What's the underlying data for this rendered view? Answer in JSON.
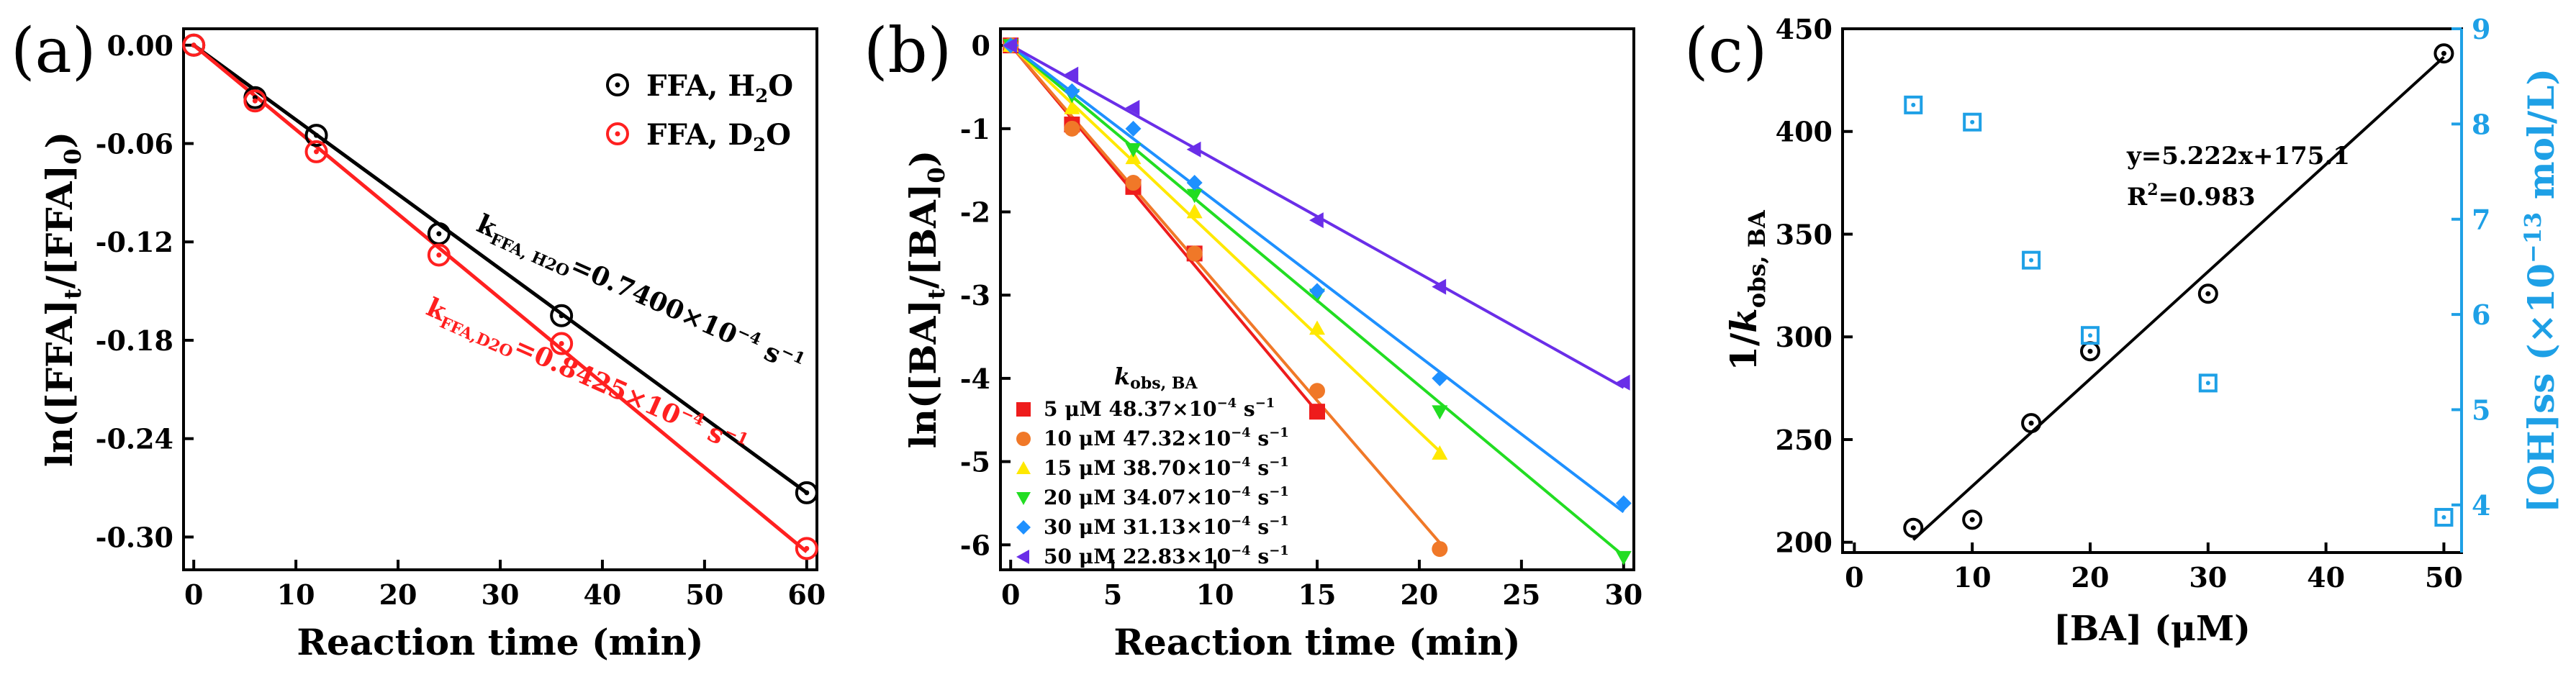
{
  "chart_data": [
    {
      "panel_label": "(a)",
      "type": "scatter",
      "xlabel": "Reaction time (min)",
      "ylabel": "ln([FFA]t/[FFA]0)",
      "ylabel_parts": [
        "ln([FFA]",
        "t",
        "/[FFA]",
        "0",
        ")"
      ],
      "xlim": [
        -1,
        61
      ],
      "ylim": [
        -0.32,
        0.01
      ],
      "x_ticks": [
        0,
        10,
        20,
        30,
        40,
        50,
        60
      ],
      "x_tick_labels": [
        "0",
        "10",
        "20",
        "30",
        "40",
        "50",
        "60"
      ],
      "y_ticks": [
        0,
        -0.06,
        -0.12,
        -0.18,
        -0.24,
        -0.3
      ],
      "y_tick_labels": [
        "0.00",
        "-0.06",
        "-0.12",
        "-0.18",
        "-0.24",
        "-0.30"
      ],
      "series": [
        {
          "name": "FFA, H2O",
          "legend_parts": [
            "FFA, H",
            "2",
            "O"
          ],
          "color": "#000000",
          "marker": "circle-dot",
          "x": [
            0,
            6,
            12,
            24,
            36,
            60
          ],
          "values": [
            0.0,
            -0.032,
            -0.055,
            -0.115,
            -0.165,
            -0.273
          ],
          "fit": {
            "slope": -0.00455,
            "intercept": 0.0
          },
          "annotation": "kFFA, H2O=0.7400×10−4 s−1",
          "annotation_parts": [
            "k",
            "FFA, H2O",
            "=0.7400×10",
            "−4",
            " s",
            "−1"
          ]
        },
        {
          "name": "FFA, D2O",
          "legend_parts": [
            "FFA, D",
            "2",
            "O"
          ],
          "color": "#ff2020",
          "marker": "circle-dot",
          "x": [
            0,
            6,
            12,
            24,
            36,
            60
          ],
          "values": [
            0.0,
            -0.034,
            -0.065,
            -0.128,
            -0.182,
            -0.307
          ],
          "fit": {
            "slope": -0.00515,
            "intercept": 0.0
          },
          "annotation": "kFFA,D2O=0.8425×10−4 s−1",
          "annotation_parts": [
            "k",
            "FFA,D2O",
            "=0.8425×10",
            "−4",
            " s",
            "−1"
          ]
        }
      ]
    },
    {
      "panel_label": "(b)",
      "type": "scatter",
      "xlabel": "Reaction time (min)",
      "ylabel": "ln([BA]t/[BA]0)",
      "ylabel_parts": [
        "ln([BA]",
        "t",
        "/[BA]",
        "0",
        ")"
      ],
      "xlim": [
        -0.5,
        30.5
      ],
      "ylim": [
        -6.3,
        0.2
      ],
      "x_ticks": [
        0,
        5,
        10,
        15,
        20,
        25,
        30
      ],
      "x_tick_labels": [
        "0",
        "5",
        "10",
        "15",
        "20",
        "25",
        "30"
      ],
      "y_ticks": [
        0,
        -1,
        -2,
        -3,
        -4,
        -5,
        -6
      ],
      "y_tick_labels": [
        "0",
        "-1",
        "-2",
        "-3",
        "-4",
        "-5",
        "-6"
      ],
      "legend_title": "kobs, BA",
      "legend_title_parts": [
        "k",
        "obs, BA"
      ],
      "series": [
        {
          "name": "5 μM 48.37×10−4 s−1",
          "legend_parts": [
            "5 μM 48.37×10",
            "−4",
            " s",
            "−1"
          ],
          "color": "#ee1c1c",
          "marker": "square",
          "x": [
            0,
            3,
            6,
            9,
            15
          ],
          "values": [
            0,
            -0.95,
            -1.7,
            -2.5,
            -4.4
          ],
          "fit": {
            "slope": -0.2935,
            "intercept": 0
          }
        },
        {
          "name": "10 μM 47.32×10−4 s−1",
          "legend_parts": [
            "10 μM 47.32×10",
            "−4",
            " s",
            "−1"
          ],
          "color": "#f07828",
          "marker": "circle",
          "x": [
            0,
            3,
            6,
            9,
            15,
            21
          ],
          "values": [
            0,
            -1.0,
            -1.65,
            -2.5,
            -4.15,
            -6.05
          ],
          "fit": {
            "slope": -0.2845,
            "intercept": 0
          }
        },
        {
          "name": "15 μM 38.70×10−4 s−1",
          "legend_parts": [
            "15 μM 38.70×10",
            "−4",
            " s",
            "−1"
          ],
          "color": "#ffe800",
          "marker": "triangle-up",
          "x": [
            0,
            3,
            6,
            9,
            15,
            21
          ],
          "values": [
            0,
            -0.75,
            -1.35,
            -2.0,
            -3.4,
            -4.9
          ],
          "fit": {
            "slope": -0.2322,
            "intercept": 0
          }
        },
        {
          "name": "20 μM 34.07×10−4 s−1",
          "legend_parts": [
            "20 μM 34.07×10",
            "−4",
            " s",
            "−1"
          ],
          "color": "#22dd22",
          "marker": "triangle-down",
          "x": [
            0,
            3,
            6,
            9,
            15,
            21,
            30
          ],
          "values": [
            0,
            -0.6,
            -1.25,
            -1.8,
            -3.0,
            -4.4,
            -6.15
          ],
          "fit": {
            "slope": -0.2044,
            "intercept": 0
          }
        },
        {
          "name": "30 μM 31.13×10−4 s−1",
          "legend_parts": [
            "30 μM 31.13×10",
            "−4",
            " s",
            "−1"
          ],
          "color": "#1e90ff",
          "marker": "diamond",
          "x": [
            0,
            3,
            6,
            9,
            15,
            21,
            30
          ],
          "values": [
            0,
            -0.55,
            -1.0,
            -1.65,
            -2.95,
            -4.0,
            -5.5
          ],
          "fit": {
            "slope": -0.1868,
            "intercept": 0
          }
        },
        {
          "name": "50 μM 22.83×10−4 s−1",
          "legend_parts": [
            "50 μM 22.83×10",
            "−4",
            " s",
            "−1"
          ],
          "color": "#6a2ee8",
          "marker": "triangle-left",
          "x": [
            0,
            3,
            6,
            9,
            15,
            21,
            30
          ],
          "values": [
            0,
            -0.35,
            -0.75,
            -1.25,
            -2.1,
            -2.9,
            -4.05
          ],
          "fit": {
            "slope": -0.137,
            "intercept": 0
          }
        }
      ]
    },
    {
      "panel_label": "(c)",
      "type": "scatter",
      "xlabel": "[BA] (μM)",
      "ylabel": "1/kobs, BA",
      "ylabel_parts": [
        "1/",
        "k",
        "obs, BA"
      ],
      "y2label": "[OH]ss (×10−13 mol/L)",
      "y2label_parts": [
        "[OH]ss (×10",
        "−13",
        " mol/L)"
      ],
      "xlim": [
        -1,
        51.5
      ],
      "ylim": [
        195,
        450
      ],
      "y2lim": [
        3.5,
        9.0
      ],
      "x_ticks": [
        0,
        10,
        20,
        30,
        40,
        50
      ],
      "x_tick_labels": [
        "0",
        "10",
        "20",
        "30",
        "40",
        "50"
      ],
      "y_ticks": [
        200,
        250,
        300,
        350,
        400,
        450
      ],
      "y_tick_labels": [
        "200",
        "250",
        "300",
        "350",
        "400",
        "450"
      ],
      "y2_ticks": [
        4,
        5,
        6,
        7,
        8,
        9
      ],
      "y2_tick_labels": [
        "4",
        "5",
        "6",
        "7",
        "8",
        "9"
      ],
      "equation": "y=5.222x+175.1",
      "r2_parts": [
        "R",
        "2",
        "=0.983"
      ],
      "r2": "R2=0.983",
      "y2_color": "#1ea0e6",
      "series": [
        {
          "name": "1/kobs,BA",
          "axis": "left",
          "color": "#000000",
          "marker": "circle-dot",
          "x": [
            5,
            10,
            15,
            20,
            30,
            50
          ],
          "values": [
            207,
            211,
            258,
            293,
            321,
            438
          ],
          "fit": {
            "slope": 5.222,
            "intercept": 175.1,
            "x_from": 5,
            "x_to": 50
          }
        },
        {
          "name": "[OH]ss",
          "axis": "right",
          "color": "#1ea0e6",
          "marker": "square-dot",
          "x": [
            5,
            10,
            20,
            15,
            30,
            50
          ],
          "values": [
            8.2,
            8.02,
            5.78,
            6.57,
            5.28,
            3.87
          ]
        }
      ]
    }
  ]
}
